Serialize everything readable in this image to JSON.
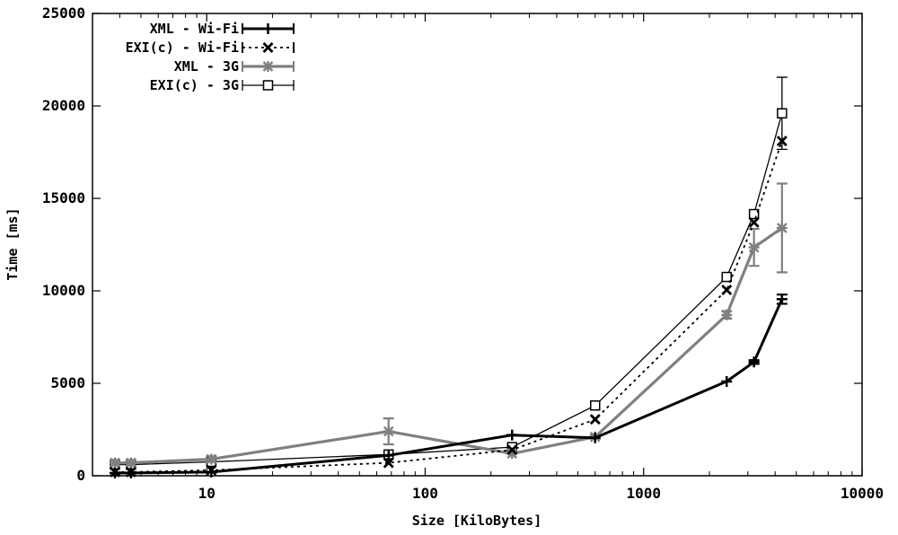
{
  "chart_data": {
    "type": "line",
    "xlabel": "Size [KiloBytes]",
    "ylabel": "Time [ms]",
    "xscale": "log",
    "xlim": [
      3,
      10000
    ],
    "ylim": [
      0,
      25000
    ],
    "x_ticks": [
      10,
      100,
      1000,
      10000
    ],
    "x_tick_labels": [
      "10",
      "100",
      "1000",
      "10000"
    ],
    "y_ticks": [
      0,
      5000,
      10000,
      15000,
      20000,
      25000
    ],
    "y_tick_labels": [
      "0",
      "5000",
      "10000",
      "15000",
      "20000",
      "25000"
    ],
    "grid": false,
    "legend_position": "top-left",
    "series": [
      {
        "name": "XML - Wi-Fi",
        "color": "#000000",
        "line_style": "solid-thick",
        "marker": "plus",
        "x": [
          3.8,
          4.5,
          10.5,
          68,
          250,
          600,
          2400,
          3200,
          4300
        ],
        "y": [
          150,
          150,
          200,
          1100,
          2200,
          2050,
          5100,
          6150,
          9550
        ],
        "err": [
          0,
          0,
          0,
          0,
          0,
          0,
          0,
          100,
          250
        ]
      },
      {
        "name": "EXI(c) - Wi-Fi",
        "color": "#000000",
        "line_style": "dotted",
        "marker": "cross",
        "x": [
          3.8,
          4.5,
          10.5,
          68,
          250,
          600,
          2400,
          3200,
          4300
        ],
        "y": [
          200,
          200,
          300,
          700,
          1400,
          3050,
          10050,
          13700,
          18100
        ],
        "err": [
          0,
          0,
          0,
          0,
          0,
          0,
          0,
          0,
          0
        ]
      },
      {
        "name": "XML - 3G",
        "color": "#808080",
        "line_style": "solid-thick",
        "marker": "star",
        "x": [
          3.8,
          4.5,
          10.5,
          68,
          250,
          600,
          2400,
          3200,
          4300
        ],
        "y": [
          700,
          700,
          900,
          2400,
          1200,
          2100,
          8700,
          12350,
          13400
        ],
        "err": [
          150,
          150,
          150,
          700,
          0,
          100,
          200,
          1000,
          2400
        ]
      },
      {
        "name": "EXI(c) - 3G",
        "color": "#000000",
        "line_style": "solid-thin",
        "marker": "square",
        "x": [
          3.8,
          4.5,
          10.5,
          68,
          250,
          600,
          2400,
          3200,
          4300
        ],
        "y": [
          600,
          600,
          750,
          1150,
          1550,
          3800,
          10750,
          14150,
          19600
        ],
        "err": [
          0,
          0,
          0,
          0,
          0,
          0,
          0,
          0,
          1950
        ]
      }
    ]
  }
}
